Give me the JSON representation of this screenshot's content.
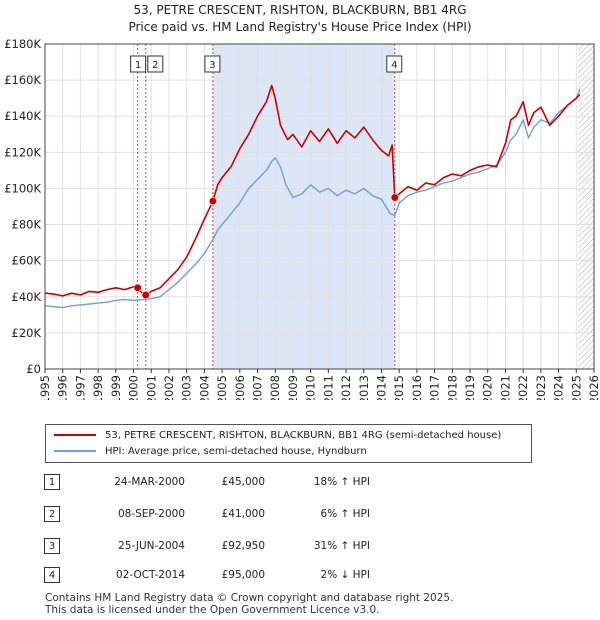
{
  "header": {
    "title": "53, PETRE CRESCENT, RISHTON, BLACKBURN, BB1 4RG",
    "subtitle": "Price paid vs. HM Land Registry's House Price Index (HPI)"
  },
  "colors": {
    "property": "#cc0000",
    "hpi": "#6f9fd8",
    "shade": "#dde6f6",
    "grid": "#e1e1e1",
    "marker_line": "#dd4444"
  },
  "chart_data": {
    "type": "line",
    "title": "53, PETRE CRESCENT, RISHTON, BLACKBURN, BB1 4RG",
    "subtitle": "Price paid vs. HM Land Registry's House Price Index (HPI)",
    "xlabel": "",
    "ylabel": "",
    "xlim": [
      1995,
      2026
    ],
    "ylim": [
      0,
      180000
    ],
    "grid": true,
    "legend_position": "below",
    "x_ticks": [
      "1995",
      "1996",
      "1997",
      "1998",
      "1999",
      "2000",
      "2001",
      "2002",
      "2003",
      "2004",
      "2005",
      "2006",
      "2007",
      "2008",
      "2009",
      "2010",
      "2011",
      "2012",
      "2013",
      "2014",
      "2015",
      "2016",
      "2017",
      "2018",
      "2019",
      "2020",
      "2021",
      "2022",
      "2023",
      "2024",
      "2025",
      "2026"
    ],
    "y_ticks": [
      {
        "value": 0,
        "label": "£0"
      },
      {
        "value": 20000,
        "label": "£20K"
      },
      {
        "value": 40000,
        "label": "£40K"
      },
      {
        "value": 60000,
        "label": "£60K"
      },
      {
        "value": 80000,
        "label": "£80K"
      },
      {
        "value": 100000,
        "label": "£100K"
      },
      {
        "value": 120000,
        "label": "£120K"
      },
      {
        "value": 140000,
        "label": "£140K"
      },
      {
        "value": 160000,
        "label": "£160K"
      },
      {
        "value": 180000,
        "label": "£180K"
      }
    ],
    "series": [
      {
        "name": "53, PETRE CRESCENT, RISHTON, BLACKBURN, BB1 4RG (semi-detached house)",
        "color": "#cc0000",
        "x": [
          1995.0,
          1995.5,
          1996.0,
          1996.5,
          1997.0,
          1997.5,
          1998.0,
          1998.5,
          1999.0,
          1999.5,
          2000.0,
          2000.23,
          2000.5,
          2000.69,
          2001.0,
          2001.5,
          2002.0,
          2002.5,
          2003.0,
          2003.5,
          2004.0,
          2004.48,
          2004.75,
          2005.0,
          2005.5,
          2006.0,
          2006.5,
          2007.0,
          2007.5,
          2007.8,
          2008.0,
          2008.3,
          2008.7,
          2009.0,
          2009.5,
          2010.0,
          2010.5,
          2011.0,
          2011.5,
          2012.0,
          2012.5,
          2013.0,
          2013.5,
          2014.0,
          2014.4,
          2014.6,
          2014.75,
          2015.0,
          2015.5,
          2016.0,
          2016.5,
          2017.0,
          2017.5,
          2018.0,
          2018.5,
          2019.0,
          2019.5,
          2020.0,
          2020.5,
          2021.0,
          2021.3,
          2021.6,
          2022.0,
          2022.3,
          2022.6,
          2023.0,
          2023.5,
          2024.0,
          2024.5,
          2025.0,
          2025.2
        ],
        "values": [
          42000,
          41500,
          40500,
          42000,
          41000,
          43000,
          42500,
          44000,
          45000,
          44000,
          45500,
          45000,
          42000,
          41000,
          43000,
          45000,
          50000,
          55000,
          62000,
          72000,
          83000,
          92950,
          102000,
          106000,
          112000,
          122000,
          130000,
          140000,
          148000,
          157000,
          150000,
          135000,
          127000,
          130000,
          123000,
          132000,
          126000,
          133000,
          125000,
          132000,
          128000,
          134000,
          127000,
          121000,
          118000,
          124000,
          95000,
          97000,
          101000,
          99000,
          103000,
          102000,
          106000,
          108000,
          107000,
          110000,
          112000,
          113000,
          112000,
          125000,
          138000,
          140000,
          148000,
          135000,
          142000,
          145000,
          135000,
          140000,
          146000,
          150000,
          152000
        ]
      },
      {
        "name": "HPI: Average price, semi-detached house, Hyndburn",
        "color": "#6f9fd8",
        "x": [
          1995.0,
          1995.5,
          1996.0,
          1996.5,
          1997.0,
          1997.5,
          1998.0,
          1998.5,
          1999.0,
          1999.5,
          2000.0,
          2000.5,
          2001.0,
          2001.5,
          2002.0,
          2002.5,
          2003.0,
          2003.5,
          2004.0,
          2004.5,
          2004.75,
          2005.0,
          2005.5,
          2006.0,
          2006.5,
          2007.0,
          2007.5,
          2007.8,
          2008.0,
          2008.3,
          2008.6,
          2009.0,
          2009.5,
          2010.0,
          2010.5,
          2011.0,
          2011.5,
          2012.0,
          2012.5,
          2013.0,
          2013.5,
          2014.0,
          2014.5,
          2014.75,
          2015.0,
          2015.5,
          2016.0,
          2016.5,
          2017.0,
          2017.5,
          2018.0,
          2018.5,
          2019.0,
          2019.5,
          2020.0,
          2020.5,
          2021.0,
          2021.3,
          2021.6,
          2022.0,
          2022.3,
          2022.6,
          2023.0,
          2023.5,
          2024.0,
          2024.5,
          2025.0,
          2025.2
        ],
        "values": [
          35000,
          34500,
          34000,
          35000,
          35500,
          36000,
          36500,
          37000,
          38000,
          38500,
          38000,
          38500,
          39000,
          40000,
          44000,
          48000,
          53000,
          58000,
          64000,
          72000,
          77000,
          80000,
          86000,
          92000,
          100000,
          105000,
          110000,
          115000,
          117000,
          112000,
          102000,
          95000,
          97000,
          102000,
          98000,
          100000,
          96000,
          99000,
          97000,
          100000,
          96000,
          94000,
          86000,
          85000,
          92000,
          96000,
          98000,
          99000,
          101000,
          103000,
          104000,
          106000,
          108000,
          109000,
          111000,
          113000,
          120000,
          127000,
          130000,
          138000,
          128000,
          134000,
          138000,
          136000,
          142000,
          146000,
          150000,
          155000
        ]
      }
    ],
    "shaded_ranges": [
      [
        2004.48,
        2014.75
      ]
    ],
    "future_hatch_from": 2025.1,
    "sales": [
      {
        "id": "1",
        "x": 2000.23,
        "value": 45000,
        "date": "24-MAR-2000",
        "price": "£45,000",
        "hpi": "18% ↑ HPI"
      },
      {
        "id": "2",
        "x": 2000.69,
        "value": 41000,
        "date": "08-SEP-2000",
        "price": "£41,000",
        "hpi": "6% ↑ HPI"
      },
      {
        "id": "3",
        "x": 2004.48,
        "value": 92950,
        "date": "25-JUN-2004",
        "price": "£92,950",
        "hpi": "31% ↑ HPI"
      },
      {
        "id": "4",
        "x": 2014.75,
        "value": 95000,
        "date": "02-OCT-2014",
        "price": "£95,000",
        "hpi": "2% ↓ HPI"
      }
    ]
  },
  "legend": {
    "property_label": "53, PETRE CRESCENT, RISHTON, BLACKBURN, BB1 4RG (semi-detached house)",
    "hpi_label": "HPI: Average price, semi-detached house, Hyndburn"
  },
  "footer": {
    "line1": "Contains HM Land Registry data © Crown copyright and database right 2025.",
    "line2": "This data is licensed under the Open Government Licence v3.0."
  }
}
